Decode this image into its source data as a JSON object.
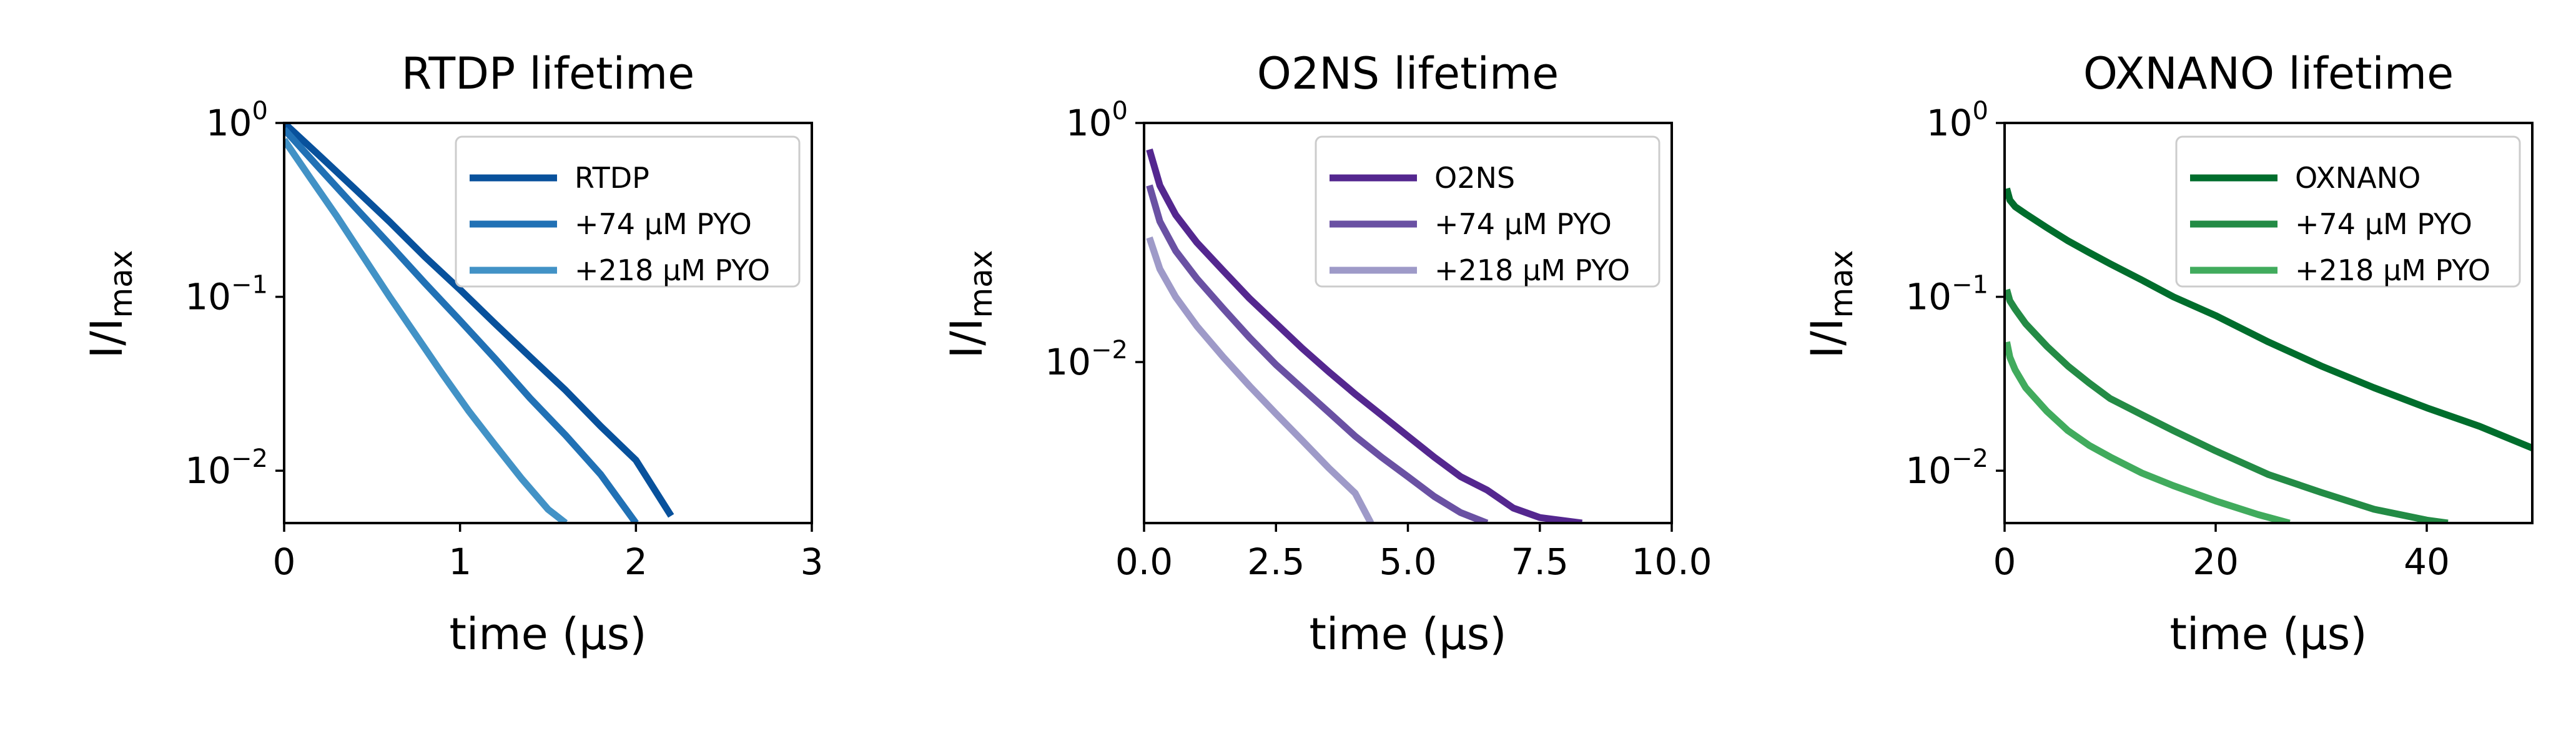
{
  "chart_data": [
    {
      "type": "line",
      "title": "RTDP lifetime",
      "xlabel": "time (μs)",
      "ylabel_main": "I/I",
      "ylabel_sub": "max",
      "y_scale": "log",
      "xlim": [
        0,
        3
      ],
      "ylim": [
        0.005,
        1
      ],
      "x_ticks": [
        {
          "value": 0,
          "label": "0"
        },
        {
          "value": 1,
          "label": "1"
        },
        {
          "value": 2,
          "label": "2"
        },
        {
          "value": 3,
          "label": "3"
        }
      ],
      "y_ticks": [
        {
          "value": 1,
          "base": "10",
          "exp": "0"
        },
        {
          "value": 0.1,
          "base": "10",
          "exp": "−1"
        },
        {
          "value": 0.01,
          "base": "10",
          "exp": "−2"
        }
      ],
      "legend_position": "upper right",
      "series": [
        {
          "name": "RTDP",
          "color": "#08519c",
          "x": [
            0,
            0.2,
            0.4,
            0.6,
            0.8,
            1.0,
            1.2,
            1.4,
            1.6,
            1.8,
            2.0,
            2.2
          ],
          "y": [
            1.0,
            0.65,
            0.42,
            0.27,
            0.17,
            0.11,
            0.07,
            0.045,
            0.029,
            0.018,
            0.0115,
            0.0055
          ]
        },
        {
          "name": "+74 μM PYO",
          "color": "#2171b5",
          "x": [
            0,
            0.2,
            0.4,
            0.6,
            0.8,
            1.0,
            1.2,
            1.4,
            1.6,
            1.8,
            2.0
          ],
          "y": [
            0.92,
            0.55,
            0.33,
            0.2,
            0.12,
            0.073,
            0.044,
            0.026,
            0.016,
            0.0095,
            0.005
          ]
        },
        {
          "name": "+218 μM PYO",
          "color": "#4292c6",
          "x": [
            0,
            0.15,
            0.3,
            0.45,
            0.6,
            0.75,
            0.9,
            1.05,
            1.2,
            1.35,
            1.5,
            1.6
          ],
          "y": [
            0.8,
            0.48,
            0.29,
            0.17,
            0.1,
            0.06,
            0.036,
            0.022,
            0.014,
            0.009,
            0.006,
            0.005
          ]
        }
      ]
    },
    {
      "type": "line",
      "title": "O2NS lifetime",
      "xlabel": "time (μs)",
      "ylabel_main": "I/I",
      "ylabel_sub": "max",
      "y_scale": "log",
      "xlim": [
        0,
        10
      ],
      "ylim": [
        0.00045,
        1
      ],
      "x_ticks": [
        {
          "value": 0,
          "label": "0.0"
        },
        {
          "value": 2.5,
          "label": "2.5"
        },
        {
          "value": 5,
          "label": "5.0"
        },
        {
          "value": 7.5,
          "label": "7.5"
        },
        {
          "value": 10,
          "label": "10.0"
        }
      ],
      "y_ticks": [
        {
          "value": 1,
          "base": "10",
          "exp": "0"
        },
        {
          "value": 0.01,
          "base": "10",
          "exp": "−2"
        }
      ],
      "legend_position": "upper right",
      "series": [
        {
          "name": "O2NS",
          "color": "#54278f",
          "x": [
            0.1,
            0.3,
            0.6,
            1.0,
            1.5,
            2.0,
            2.5,
            3.0,
            3.5,
            4.0,
            4.5,
            5.0,
            5.5,
            6.0,
            6.5,
            7.0,
            7.5,
            8.3
          ],
          "y": [
            0.6,
            0.3,
            0.17,
            0.1,
            0.058,
            0.034,
            0.021,
            0.013,
            0.0083,
            0.0054,
            0.0036,
            0.0024,
            0.0016,
            0.0011,
            0.00085,
            0.0006,
            0.0005,
            0.00045
          ]
        },
        {
          "name": "+74 μM PYO",
          "color": "#6a51a3",
          "x": [
            0.1,
            0.3,
            0.6,
            1.0,
            1.5,
            2.0,
            2.5,
            3.0,
            3.5,
            4.0,
            4.5,
            5.0,
            5.5,
            6.0,
            6.5
          ],
          "y": [
            0.3,
            0.15,
            0.085,
            0.05,
            0.028,
            0.016,
            0.0095,
            0.006,
            0.0038,
            0.0024,
            0.0016,
            0.0011,
            0.00075,
            0.00055,
            0.00045
          ]
        },
        {
          "name": "+218 μM PYO",
          "color": "#9e9ac8",
          "x": [
            0.1,
            0.3,
            0.6,
            1.0,
            1.5,
            2.0,
            2.5,
            3.0,
            3.5,
            4.0,
            4.3
          ],
          "y": [
            0.11,
            0.06,
            0.035,
            0.02,
            0.011,
            0.0063,
            0.0037,
            0.0022,
            0.0013,
            0.0008,
            0.00045
          ]
        }
      ]
    },
    {
      "type": "line",
      "title": "OXNANO lifetime",
      "xlabel": "time (μs)",
      "ylabel_main": "I/I",
      "ylabel_sub": "max",
      "y_scale": "log",
      "xlim": [
        0,
        50
      ],
      "ylim": [
        0.005,
        1
      ],
      "x_ticks": [
        {
          "value": 0,
          "label": "0"
        },
        {
          "value": 20,
          "label": "20"
        },
        {
          "value": 40,
          "label": "40"
        }
      ],
      "y_ticks": [
        {
          "value": 1,
          "base": "10",
          "exp": "0"
        },
        {
          "value": 0.1,
          "base": "10",
          "exp": "−1"
        },
        {
          "value": 0.01,
          "base": "10",
          "exp": "−2"
        }
      ],
      "legend_position": "upper right",
      "series": [
        {
          "name": "OXNANO",
          "color": "#006d2c",
          "x": [
            0.2,
            0.5,
            1,
            2,
            4,
            6,
            8,
            10,
            13,
            16,
            20,
            25,
            30,
            35,
            40,
            45,
            50
          ],
          "y": [
            0.42,
            0.36,
            0.33,
            0.3,
            0.25,
            0.21,
            0.18,
            0.155,
            0.125,
            0.1,
            0.078,
            0.055,
            0.04,
            0.03,
            0.023,
            0.018,
            0.0135
          ]
        },
        {
          "name": "+74 μM PYO",
          "color": "#238b45",
          "x": [
            0.2,
            0.5,
            1,
            2,
            4,
            6,
            8,
            10,
            13,
            16,
            20,
            25,
            30,
            35,
            40,
            42
          ],
          "y": [
            0.11,
            0.095,
            0.085,
            0.07,
            0.052,
            0.04,
            0.032,
            0.026,
            0.021,
            0.017,
            0.013,
            0.0095,
            0.0075,
            0.006,
            0.0052,
            0.005
          ]
        },
        {
          "name": "+218 μM PYO",
          "color": "#41ab5d",
          "x": [
            0.2,
            0.5,
            1,
            2,
            4,
            6,
            8,
            10,
            13,
            16,
            20,
            24,
            27
          ],
          "y": [
            0.055,
            0.045,
            0.038,
            0.03,
            0.022,
            0.017,
            0.014,
            0.012,
            0.0097,
            0.0082,
            0.0067,
            0.0056,
            0.005
          ]
        }
      ]
    }
  ]
}
